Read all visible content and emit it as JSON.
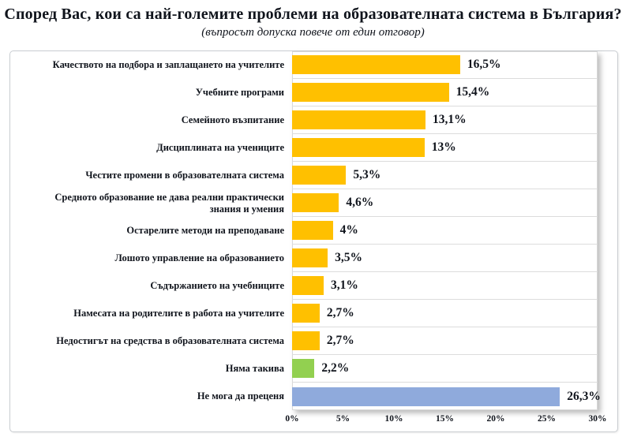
{
  "title": "Според Вас, кои са най-големите проблеми на образователната система в България?",
  "subtitle": "(въпросът допуска повече от един отговор)",
  "chart_data": {
    "type": "bar",
    "orientation": "horizontal",
    "title": "Според Вас, кои са най-големите проблеми на образователната система в България?",
    "subtitle": "(въпросът допуска повече от един отговор)",
    "categories": [
      "Качеството на подбора и заплащането на учителите",
      "Учебните програми",
      "Семейното възпитание",
      "Дисциплината на учениците",
      "Честите промени в образователната система",
      "Средното образование не дава реални практически знания и умения",
      "Остарелите методи на преподаване",
      "Лошото управление на образованието",
      "Съдържанието на учебниците",
      "Намесата на родителите в работа на учителите",
      "Недостигът на средства в образователната система",
      "Няма такива",
      "Не мога да преценя"
    ],
    "values": [
      16.5,
      15.4,
      13.1,
      13,
      5.3,
      4.6,
      4,
      3.5,
      3.1,
      2.7,
      2.7,
      2.2,
      26.3
    ],
    "value_labels": [
      "16,5%",
      "15,4%",
      "13,1%",
      "13%",
      "5,3%",
      "4,6%",
      "4%",
      "3,5%",
      "3,1%",
      "2,7%",
      "2,7%",
      "2,2%",
      "26,3%"
    ],
    "bar_colors": [
      "#FFC000",
      "#FFC000",
      "#FFC000",
      "#FFC000",
      "#FFC000",
      "#FFC000",
      "#FFC000",
      "#FFC000",
      "#FFC000",
      "#FFC000",
      "#FFC000",
      "#92D050",
      "#8FAADC"
    ],
    "xlim": [
      0,
      30
    ],
    "x_ticks": [
      "0%",
      "5%",
      "10%",
      "15%",
      "20%",
      "25%",
      "30%"
    ],
    "xlabel": "",
    "ylabel": "",
    "legend": "none",
    "grid": "horizontal row separators only"
  },
  "colors": {
    "bar_orange": "#FFC000",
    "bar_green": "#92D050",
    "bar_blue": "#8FAADC",
    "text": "#10141c",
    "row_separator": "#dcdcdc",
    "frame_border": "#c9cdd1",
    "panel_border": "#d9d9d9"
  }
}
